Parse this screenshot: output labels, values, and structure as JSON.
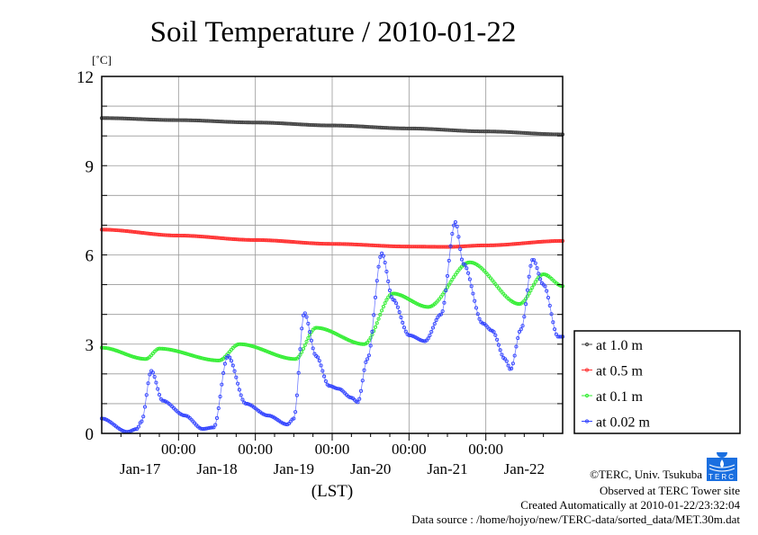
{
  "chart_data": {
    "type": "line",
    "title": "Soil Temperature / 2010-01-22",
    "ylabel": "[˚C]",
    "xlabel": "(LST)",
    "ylim": [
      0,
      12
    ],
    "xlim_hours": [
      0,
      144
    ],
    "x_unit": "hours since Jan-17 00:00 LST",
    "yticks": [
      "0",
      "3",
      "6",
      "9",
      "12"
    ],
    "ytick_values": [
      0,
      3,
      6,
      9,
      12
    ],
    "time_tick_label": "00:00",
    "time_tick_hours": [
      24,
      48,
      72,
      96,
      120
    ],
    "date_labels": [
      "Jan-17",
      "Jan-18",
      "Jan-19",
      "Jan-20",
      "Jan-21",
      "Jan-22"
    ],
    "grid": true,
    "legend_position": "right",
    "series": [
      {
        "name": "at 1.0 m",
        "color": "#444444",
        "points": [
          [
            0,
            10.6
          ],
          [
            24,
            10.53
          ],
          [
            48,
            10.45
          ],
          [
            72,
            10.35
          ],
          [
            96,
            10.25
          ],
          [
            120,
            10.15
          ],
          [
            144,
            10.05
          ]
        ]
      },
      {
        "name": "at 0.5 m",
        "color": "#ff3030",
        "points": [
          [
            0,
            6.85
          ],
          [
            24,
            6.65
          ],
          [
            48,
            6.5
          ],
          [
            72,
            6.37
          ],
          [
            96,
            6.28
          ],
          [
            108,
            6.27
          ],
          [
            120,
            6.32
          ],
          [
            144,
            6.47
          ]
        ]
      },
      {
        "name": "at 0.1 m",
        "color": "#33ee33",
        "points": [
          [
            0,
            2.88
          ],
          [
            13.8,
            2.5
          ],
          [
            18,
            2.85
          ],
          [
            36.6,
            2.45
          ],
          [
            43,
            3.0
          ],
          [
            60.5,
            2.5
          ],
          [
            67,
            3.55
          ],
          [
            82,
            3.0
          ],
          [
            91,
            4.7
          ],
          [
            102,
            4.25
          ],
          [
            115,
            5.75
          ],
          [
            130.5,
            4.35
          ],
          [
            138,
            5.35
          ],
          [
            144,
            4.95
          ]
        ]
      },
      {
        "name": "at 0.02 m",
        "color": "#3344ff",
        "points": [
          [
            0,
            0.5
          ],
          [
            8,
            0.05
          ],
          [
            11,
            0.15
          ],
          [
            12.4,
            0.4
          ],
          [
            15.5,
            2.1
          ],
          [
            19,
            1.1
          ],
          [
            26,
            0.6
          ],
          [
            31.5,
            0.15
          ],
          [
            35,
            0.2
          ],
          [
            39.4,
            2.6
          ],
          [
            45,
            1.0
          ],
          [
            52,
            0.6
          ],
          [
            58,
            0.3
          ],
          [
            60,
            0.5
          ],
          [
            63.3,
            4.05
          ],
          [
            67,
            2.6
          ],
          [
            71,
            1.6
          ],
          [
            74,
            1.5
          ],
          [
            78,
            1.2
          ],
          [
            80,
            1.05
          ],
          [
            83,
            2.5
          ],
          [
            87.5,
            6.05
          ],
          [
            91,
            4.5
          ],
          [
            96,
            3.3
          ],
          [
            101,
            3.1
          ],
          [
            106,
            4.0
          ],
          [
            110.5,
            7.1
          ],
          [
            113,
            5.7
          ],
          [
            119,
            3.7
          ],
          [
            122,
            3.45
          ],
          [
            126,
            2.5
          ],
          [
            127.7,
            2.15
          ],
          [
            131,
            3.5
          ],
          [
            134.7,
            5.85
          ],
          [
            138,
            5.0
          ],
          [
            142.6,
            3.25
          ],
          [
            144,
            3.25
          ]
        ]
      }
    ]
  },
  "footer": {
    "copyright": "©TERC, Univ. Tsukuba",
    "observed": "Observed at TERC Tower site",
    "created": "Created Automatically at 2010-01-22/23:32:04",
    "source": "Data source : /home/hojyo/new/TERC-data/sorted_data/MET.30m.dat",
    "logo_text": "TERC"
  }
}
